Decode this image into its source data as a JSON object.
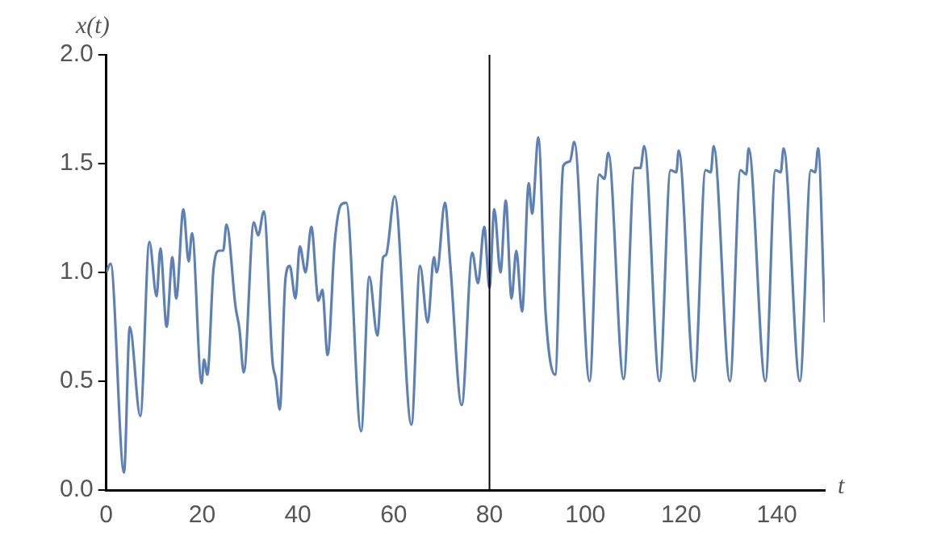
{
  "chart_data": {
    "type": "line",
    "xlabel": "t",
    "ylabel": "x(t)",
    "x": [
      0,
      0.9,
      3.7,
      4.9,
      7.1,
      9.0,
      10.5,
      11.3,
      12.6,
      13.8,
      14.6,
      16.1,
      17.2,
      17.9,
      19.9,
      20.4,
      21.1,
      22.4,
      23.6,
      24.4,
      25.1,
      27.0,
      27.8,
      28.7,
      30.8,
      31.7,
      32.9,
      34.7,
      35.4,
      36.2,
      37.4,
      38.3,
      39.5,
      40.4,
      41.6,
      42.8,
      44.3,
      45.1,
      46.2,
      47.7,
      49.0,
      50.1,
      53.2,
      54.9,
      56.6,
      57.8,
      58.4,
      60.2,
      63.7,
      65.5,
      67.1,
      68.4,
      69.0,
      70.7,
      71.8,
      74.2,
      76.4,
      77.6,
      78.9,
      80.0,
      81.0,
      82.3,
      83.4,
      84.6,
      85.6,
      86.8,
      88.2,
      88.9,
      90.2,
      91.7,
      93.7,
      95.4,
      96.8,
      97.7,
      100.9,
      102.9,
      104.0,
      104.8,
      108.0,
      110.3,
      111.5,
      112.3,
      115.5,
      117.8,
      119.0,
      119.5,
      122.8,
      125.1,
      126.2,
      126.8,
      130.2,
      132.4,
      133.6,
      134.1,
      137.6,
      139.7,
      140.8,
      141.4,
      144.8,
      147.1,
      148.0,
      148.6,
      150
    ],
    "series": [
      {
        "color": "#5e81b5",
        "values": [
          1.0,
          1.04,
          0.08,
          0.75,
          0.34,
          1.14,
          0.89,
          1.11,
          0.75,
          1.07,
          0.88,
          1.29,
          1.05,
          1.18,
          0.49,
          0.6,
          0.53,
          1.02,
          1.1,
          1.1,
          1.22,
          0.84,
          0.74,
          0.54,
          1.23,
          1.17,
          1.28,
          0.59,
          0.51,
          0.37,
          0.97,
          1.03,
          0.88,
          1.12,
          1.0,
          1.21,
          0.87,
          0.92,
          0.62,
          1.14,
          1.31,
          1.32,
          0.27,
          0.98,
          0.71,
          1.07,
          1.08,
          1.35,
          0.3,
          1.03,
          0.77,
          1.07,
          1.0,
          1.32,
          1.04,
          0.39,
          1.09,
          0.95,
          1.21,
          0.93,
          1.29,
          1.0,
          1.33,
          0.88,
          1.1,
          0.82,
          1.41,
          1.27,
          1.62,
          0.82,
          0.53,
          1.49,
          1.51,
          1.6,
          0.5,
          1.45,
          1.43,
          1.55,
          0.51,
          1.48,
          1.48,
          1.58,
          0.5,
          1.47,
          1.46,
          1.56,
          0.5,
          1.47,
          1.46,
          1.58,
          0.5,
          1.47,
          1.45,
          1.57,
          0.5,
          1.47,
          1.46,
          1.57,
          0.5,
          1.47,
          1.46,
          1.57,
          0.77
        ]
      }
    ],
    "xlim": [
      0,
      150
    ],
    "xticks": [
      0,
      20,
      40,
      60,
      80,
      100,
      120,
      140
    ],
    "ylim": [
      0,
      2
    ],
    "yticks": [
      {
        "value": 0,
        "label": "0.0"
      },
      {
        "value": 0.5,
        "label": "0.5"
      },
      {
        "value": 1,
        "label": "1.0"
      },
      {
        "value": 1.5,
        "label": "1.5"
      },
      {
        "value": 2,
        "label": "2.0"
      }
    ],
    "ref_lines": [
      {
        "axis": "x",
        "value": 80,
        "color": "#000000"
      }
    ],
    "grid": false,
    "legend": false,
    "marker": "none",
    "line_style": "solid"
  }
}
